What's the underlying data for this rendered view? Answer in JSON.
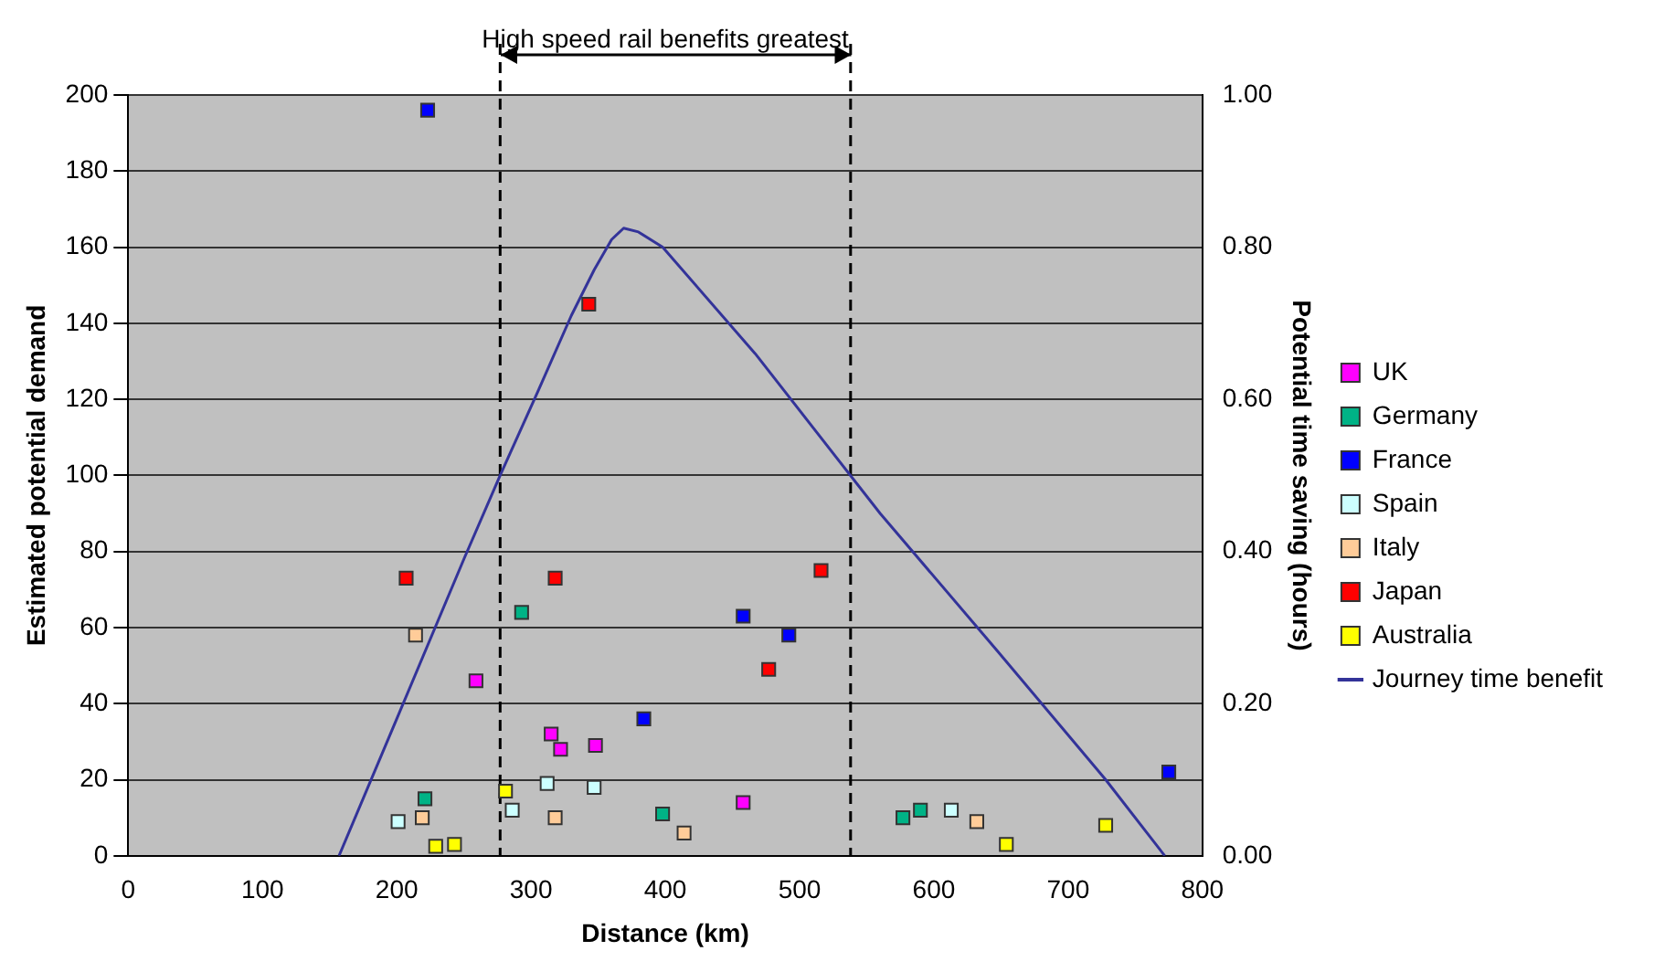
{
  "chart_data": {
    "type": "scatter",
    "xlabel": "Distance (km)",
    "ylabel": "Estimated potential demand",
    "y2label": "Potential time saving (hours)",
    "annotations": [
      "High speed rail benefits greatest"
    ],
    "xlim": [
      0,
      800
    ],
    "xticks": [
      0,
      100,
      200,
      300,
      400,
      500,
      600,
      700,
      800
    ],
    "ylim": [
      0,
      200
    ],
    "yticks": [
      0,
      20,
      40,
      60,
      80,
      100,
      120,
      140,
      160,
      180,
      200
    ],
    "y2lim": [
      0,
      1
    ],
    "y2ticks": [
      {
        "value": 0,
        "label": "0.00"
      },
      {
        "value": 0.2,
        "label": "0.20"
      },
      {
        "value": 0.4,
        "label": "0.40"
      },
      {
        "value": 0.6,
        "label": "0.60"
      },
      {
        "value": 0.8,
        "label": "0.80"
      },
      {
        "value": 1,
        "label": "1.00"
      }
    ],
    "grid": "y",
    "legend": "right",
    "marker": "square",
    "ref_lines": [
      {
        "axis": "x",
        "value": 277,
        "color": "#000000",
        "line_style": "dashed"
      },
      {
        "axis": "x",
        "value": 538,
        "color": "#000000",
        "line_style": "dashed"
      }
    ],
    "series": [
      {
        "name": "UK",
        "color": "#ff00ff",
        "x": [
          259,
          315,
          322,
          348,
          458
        ],
        "values": [
          46,
          32,
          28,
          29,
          14
        ]
      },
      {
        "name": "Germany",
        "color": "#00b386",
        "x": [
          221,
          293,
          398,
          577,
          590
        ],
        "values": [
          15,
          64,
          11,
          10,
          12
        ]
      },
      {
        "name": "France",
        "color": "#0000ff",
        "x": [
          223,
          384,
          458,
          492,
          775
        ],
        "values": [
          196,
          36,
          63,
          58,
          22
        ]
      },
      {
        "name": "Spain",
        "color": "#ccffff",
        "x": [
          201,
          286,
          312,
          347,
          613
        ],
        "values": [
          9,
          12,
          19,
          18,
          12
        ]
      },
      {
        "name": "Italy",
        "color": "#ffcc99",
        "x": [
          214,
          219,
          318,
          414,
          632
        ],
        "values": [
          58,
          10,
          10,
          6,
          9
        ]
      },
      {
        "name": "Japan",
        "color": "#ff0000",
        "x": [
          207,
          318,
          343,
          477,
          516
        ],
        "values": [
          73,
          73,
          145,
          49,
          75
        ]
      },
      {
        "name": "Australia",
        "color": "#ffff00",
        "x": [
          229,
          243,
          281,
          654,
          728
        ],
        "values": [
          2.5,
          3,
          17,
          3,
          8
        ]
      },
      {
        "name": "Journey time benefit",
        "type": "line",
        "axis": "y2",
        "color": "#333399",
        "marker": "none",
        "x": [
          157,
          200,
          250,
          277,
          305,
          330,
          347,
          360,
          369,
          380,
          398,
          467,
          560,
          647,
          728,
          772
        ],
        "values": [
          0,
          0.18,
          0.39,
          0.5,
          0.61,
          0.71,
          0.77,
          0.81,
          0.825,
          0.82,
          0.8,
          0.66,
          0.45,
          0.27,
          0.1,
          0
        ]
      }
    ]
  }
}
